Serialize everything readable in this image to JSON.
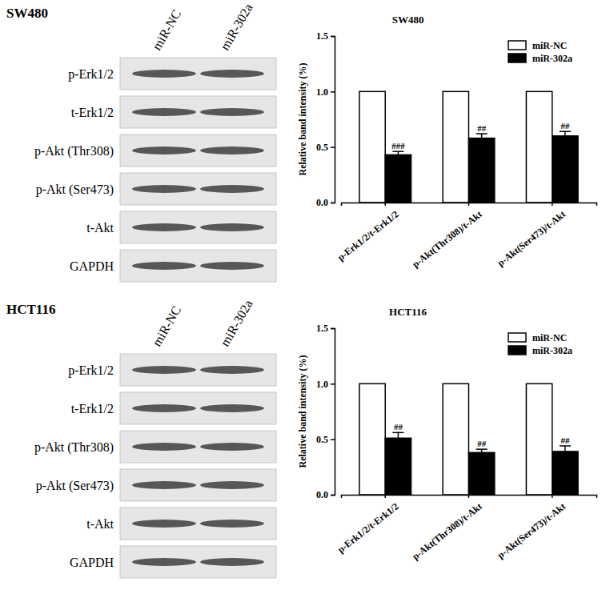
{
  "blots": [
    {
      "title": "SW480",
      "lanes": [
        "miR-NC",
        "miR-302a"
      ],
      "rows": [
        "p-Erk1/2",
        "t-Erk1/2",
        "p-Akt (Thr308)",
        "p-Akt (Ser473)",
        "t-Akt",
        "GAPDH"
      ]
    },
    {
      "title": "HCT116",
      "lanes": [
        "miR-NC",
        "miR-302a"
      ],
      "rows": [
        "p-Erk1/2",
        "t-Erk1/2",
        "p-Akt (Thr308)",
        "p-Akt (Ser473)",
        "t-Akt",
        "GAPDH"
      ]
    }
  ],
  "chart_data": [
    {
      "type": "bar",
      "title": "SW480",
      "y_label": "Relative band intensity (%)",
      "categories": [
        "p-Erk1/2/t-Erk1/2",
        "p-Akt(Thr308)/t-Akt",
        "p-Akt(Ser473)/t-Akt"
      ],
      "series": [
        {
          "name": "miR-NC",
          "color": "#ffffff",
          "values": [
            1.0,
            1.0,
            1.0
          ]
        },
        {
          "name": "miR-302a",
          "color": "#000000",
          "values": [
            0.43,
            0.58,
            0.6
          ],
          "errors": [
            0.03,
            0.04,
            0.04
          ],
          "significance": [
            "###",
            "##",
            "##"
          ]
        }
      ],
      "ylim": [
        0,
        1.5
      ],
      "yticks": [
        {
          "value": 0,
          "label": "0.0"
        },
        {
          "value": 0.5,
          "label": "0.5"
        },
        {
          "value": 1,
          "label": "1.0"
        },
        {
          "value": 1.5,
          "label": "1.5"
        }
      ],
      "legend": "top-right",
      "grid": false
    },
    {
      "type": "bar",
      "title": "HCT116",
      "y_label": "Relative band intensity (%)",
      "categories": [
        "p-Erk1/2/t-Erk1/2",
        "p-Akt(Thr308)/t-Akt",
        "p-Akt(Ser473)/t-Akt"
      ],
      "series": [
        {
          "name": "miR-NC",
          "color": "#ffffff",
          "values": [
            1.0,
            1.0,
            1.0
          ]
        },
        {
          "name": "miR-302a",
          "color": "#000000",
          "values": [
            0.51,
            0.38,
            0.39
          ],
          "errors": [
            0.05,
            0.03,
            0.05
          ],
          "significance": [
            "##",
            "##",
            "##"
          ]
        }
      ],
      "ylim": [
        0,
        1.5
      ],
      "yticks": [
        {
          "value": 0,
          "label": "0.0"
        },
        {
          "value": 0.5,
          "label": "0.5"
        },
        {
          "value": 1,
          "label": "1.0"
        },
        {
          "value": 1.5,
          "label": "1.5"
        }
      ],
      "legend": "top-right",
      "grid": false
    }
  ]
}
